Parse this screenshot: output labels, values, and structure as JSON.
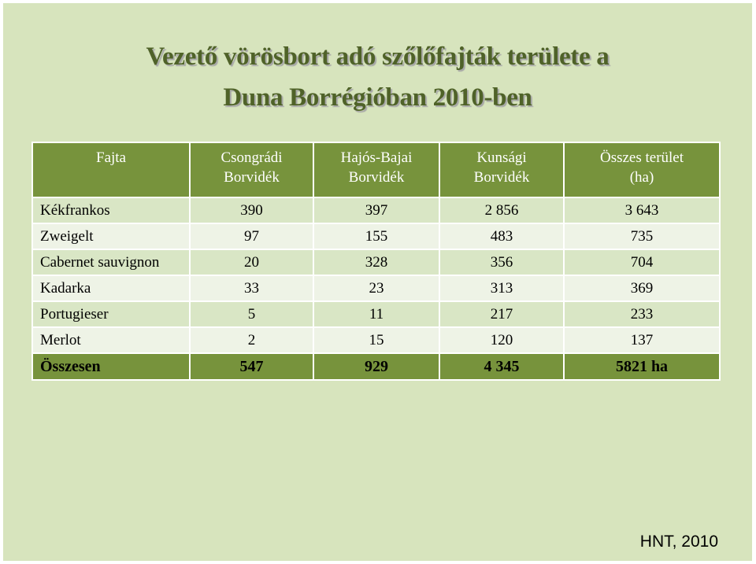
{
  "title": {
    "line1": "Vezető vörösbort adó szőlőfajták területe a",
    "line2": "Duna Borrégióban 2010-ben"
  },
  "table": {
    "headers": [
      {
        "line1": "Fajta",
        "line2": ""
      },
      {
        "line1": "Csongrádi",
        "line2": "Borvidék"
      },
      {
        "line1": "Hajós-Bajai",
        "line2": "Borvidék"
      },
      {
        "line1": "Kunsági",
        "line2": "Borvidék"
      },
      {
        "line1": "Összes terület",
        "line2": "(ha)"
      }
    ],
    "rows": [
      [
        "Kékfrankos",
        "390",
        "397",
        "2 856",
        "3 643"
      ],
      [
        "Zweigelt",
        "97",
        "155",
        "483",
        "735"
      ],
      [
        "Cabernet sauvignon",
        "20",
        "328",
        "356",
        "704"
      ],
      [
        "Kadarka",
        "33",
        "23",
        "313",
        "369"
      ],
      [
        "Portugieser",
        "5",
        "11",
        "217",
        "233"
      ],
      [
        "Merlot",
        "2",
        "15",
        "120",
        "137"
      ]
    ],
    "total": [
      "Összesen",
      "547",
      "929",
      "4 345",
      "5821 ha"
    ]
  },
  "credit": "HNT, 2010",
  "colors": {
    "background": "#d7e4bd",
    "header": "#77933c",
    "title": "#4f6228"
  }
}
